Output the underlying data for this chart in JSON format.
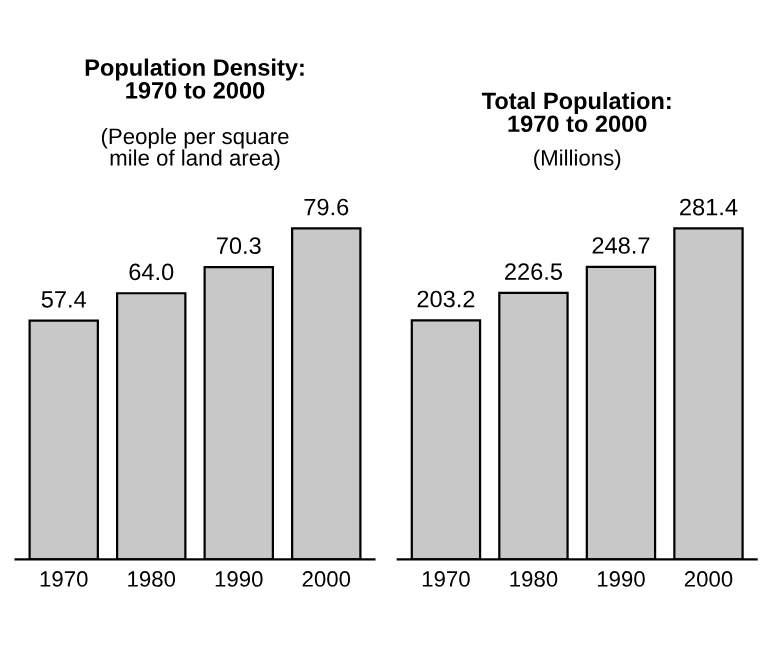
{
  "chart_data": [
    {
      "type": "bar",
      "title": "Population Density:\n1970 to 2000",
      "subtitle": "(People per square\nmile of land area)",
      "categories": [
        "1970",
        "1980",
        "1990",
        "2000"
      ],
      "values": [
        57.4,
        64.0,
        70.3,
        79.6
      ],
      "value_labels": [
        "57.4",
        "64.0",
        "70.3",
        "79.6"
      ],
      "color": "#c8c8c8"
    },
    {
      "type": "bar",
      "title": "Total Population:\n1970 to 2000",
      "subtitle": "(Millions)",
      "categories": [
        "1970",
        "1980",
        "1990",
        "2000"
      ],
      "values": [
        203.2,
        226.5,
        248.7,
        281.4
      ],
      "value_labels": [
        "203.2",
        "226.5",
        "248.7",
        "281.4"
      ],
      "color": "#c8c8c8"
    }
  ]
}
